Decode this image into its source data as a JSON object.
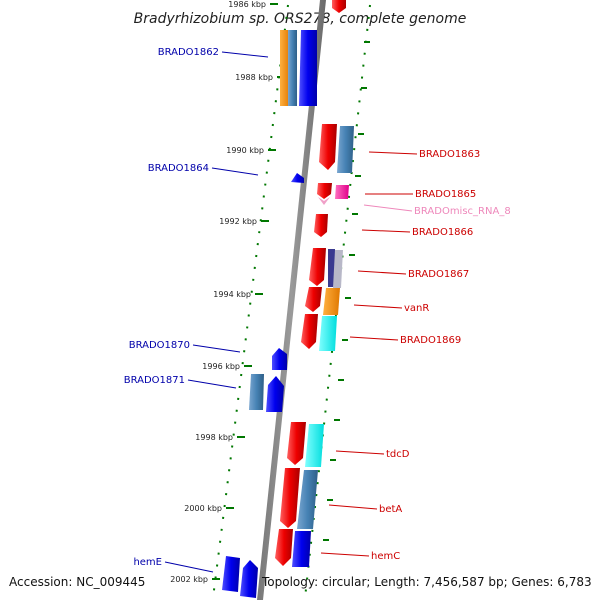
{
  "title": "Bradyrhizobium sp. ORS278, complete genome",
  "footer": {
    "accession": "Accession: NC_009445",
    "topology": "Topology: circular; Length: 7,456,587 bp; Genes: 6,783"
  },
  "colors": {
    "left_label": "#0000aa",
    "right_label": "#cc0000",
    "rna_label": "#ee88bb",
    "tick": "#007700",
    "axis": "#888888"
  },
  "ticks": [
    "1986 kbp",
    "1988 kbp",
    "1990 kbp",
    "1992 kbp",
    "1994 kbp",
    "1996 kbp",
    "1998 kbp",
    "2000 kbp",
    "2002 kbp"
  ],
  "left_genes": [
    "BRADO1862",
    "BRADO1864",
    "BRADO1870",
    "BRADO1871",
    "hemE"
  ],
  "right_genes": [
    "BRADO1863",
    "BRADO1865",
    "BRADOmisc_RNA_8",
    "BRADO1866",
    "BRADO1867",
    "vanR",
    "BRADO1869",
    "tdcD",
    "betA",
    "hemC"
  ]
}
